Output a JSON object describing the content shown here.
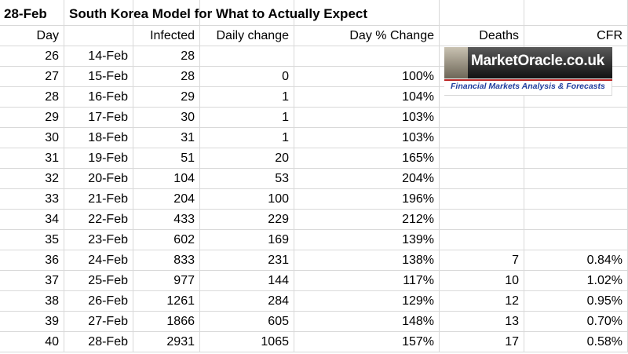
{
  "sheet": {
    "title_date": "28-Feb",
    "title": "South Korea Model for What to Actually Expect",
    "headers": [
      "Day",
      "Infected",
      "Daily change",
      "Day % Change",
      "Deaths",
      "CFR"
    ],
    "rows": [
      {
        "day": "26",
        "date": "14-Feb",
        "infected": "28"
      },
      {
        "day": "27",
        "date": "15-Feb",
        "infected": "28",
        "change": "0",
        "pct": "100%"
      },
      {
        "day": "28",
        "date": "16-Feb",
        "infected": "29",
        "change": "1",
        "pct": "104%"
      },
      {
        "day": "29",
        "date": "17-Feb",
        "infected": "30",
        "change": "1",
        "pct": "103%"
      },
      {
        "day": "30",
        "date": "18-Feb",
        "infected": "31",
        "change": "1",
        "pct": "103%"
      },
      {
        "day": "31",
        "date": "19-Feb",
        "infected": "51",
        "change": "20",
        "pct": "165%"
      },
      {
        "day": "32",
        "date": "20-Feb",
        "infected": "104",
        "change": "53",
        "pct": "204%"
      },
      {
        "day": "33",
        "date": "21-Feb",
        "infected": "204",
        "change": "100",
        "pct": "196%"
      },
      {
        "day": "34",
        "date": "22-Feb",
        "infected": "433",
        "change": "229",
        "pct": "212%"
      },
      {
        "day": "35",
        "date": "23-Feb",
        "infected": "602",
        "change": "169",
        "pct": "139%"
      },
      {
        "day": "36",
        "date": "24-Feb",
        "infected": "833",
        "change": "231",
        "pct": "138%",
        "deaths": "7",
        "cfr": "0.84%"
      },
      {
        "day": "37",
        "date": "25-Feb",
        "infected": "977",
        "change": "144",
        "pct": "117%",
        "deaths": "10",
        "cfr": "1.02%"
      },
      {
        "day": "38",
        "date": "26-Feb",
        "infected": "1261",
        "change": "284",
        "pct": "129%",
        "deaths": "12",
        "cfr": "0.95%"
      },
      {
        "day": "39",
        "date": "27-Feb",
        "infected": "1866",
        "change": "605",
        "pct": "148%",
        "deaths": "13",
        "cfr": "0.70%"
      },
      {
        "day": "40",
        "date": "28-Feb",
        "infected": "2931",
        "change": "1065",
        "pct": "157%",
        "deaths": "17",
        "cfr": "0.58%"
      }
    ]
  },
  "logo": {
    "name": "MarketOracle.co.uk",
    "tagline": "Financial Markets Analysis & Forecasts"
  }
}
